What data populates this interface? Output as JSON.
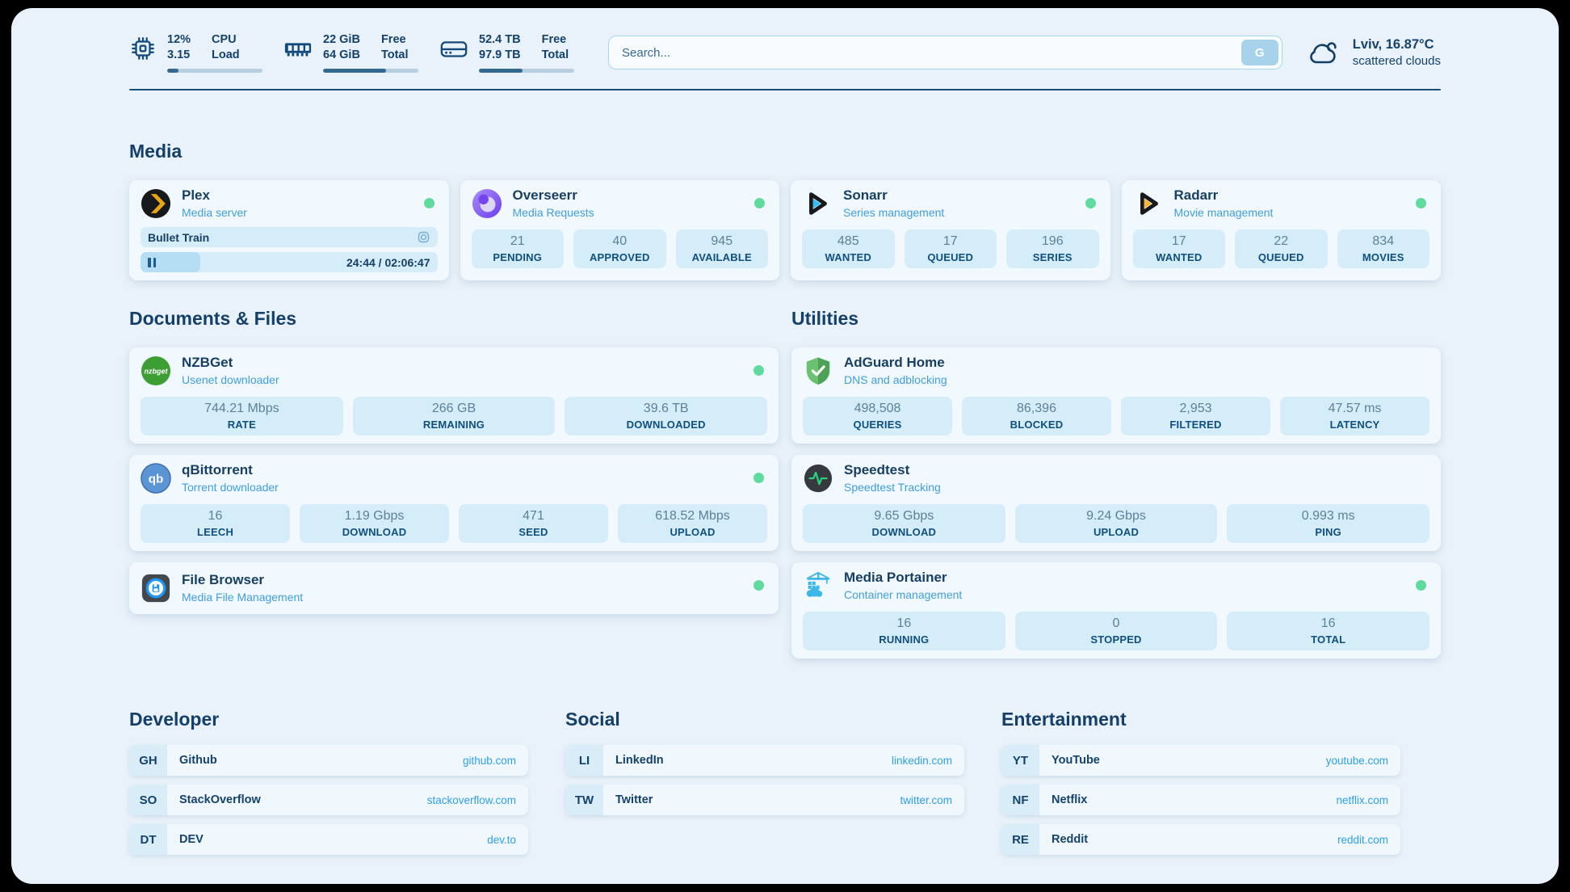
{
  "topbar": {
    "cpu": {
      "line1_value": "12%",
      "line2_value": "3.15",
      "line1_label": "CPU",
      "line2_label": "Load",
      "progress_pct": 12
    },
    "memory": {
      "line1_value": "22 GiB",
      "line2_value": "64 GiB",
      "line1_label": "Free",
      "line2_label": "Total",
      "progress_pct": 66
    },
    "disk": {
      "line1_value": "52.4 TB",
      "line2_value": "97.9 TB",
      "line1_label": "Free",
      "line2_label": "Total",
      "progress_pct": 46
    },
    "search": {
      "placeholder": "Search...",
      "button_label": "G"
    },
    "weather": {
      "location": "Lviv, 16.87°C",
      "condition": "scattered clouds"
    }
  },
  "sections": {
    "media": "Media",
    "documents": "Documents & Files",
    "utilities": "Utilities",
    "developer": "Developer",
    "social": "Social",
    "entertainment": "Entertainment"
  },
  "apps": {
    "plex": {
      "name": "Plex",
      "subtitle": "Media server",
      "media_title": "Bullet Train",
      "media_time": "24:44 / 02:06:47",
      "progress_pct": 20
    },
    "overseerr": {
      "name": "Overseerr",
      "subtitle": "Media Requests",
      "stats": [
        {
          "value": "21",
          "label": "PENDING"
        },
        {
          "value": "40",
          "label": "APPROVED"
        },
        {
          "value": "945",
          "label": "AVAILABLE"
        }
      ]
    },
    "sonarr": {
      "name": "Sonarr",
      "subtitle": "Series management",
      "stats": [
        {
          "value": "485",
          "label": "WANTED"
        },
        {
          "value": "17",
          "label": "QUEUED"
        },
        {
          "value": "196",
          "label": "SERIES"
        }
      ]
    },
    "radarr": {
      "name": "Radarr",
      "subtitle": "Movie management",
      "stats": [
        {
          "value": "17",
          "label": "WANTED"
        },
        {
          "value": "22",
          "label": "QUEUED"
        },
        {
          "value": "834",
          "label": "MOVIES"
        }
      ]
    },
    "nzbget": {
      "name": "NZBGet",
      "subtitle": "Usenet downloader",
      "icon_text": "nzbget",
      "stats": [
        {
          "value": "744.21 Mbps",
          "label": "RATE"
        },
        {
          "value": "266 GB",
          "label": "REMAINING"
        },
        {
          "value": "39.6 TB",
          "label": "DOWNLOADED"
        }
      ]
    },
    "qbittorrent": {
      "name": "qBittorrent",
      "subtitle": "Torrent downloader",
      "icon_text": "qb",
      "stats": [
        {
          "value": "16",
          "label": "LEECH"
        },
        {
          "value": "1.19 Gbps",
          "label": "DOWNLOAD"
        },
        {
          "value": "471",
          "label": "SEED"
        },
        {
          "value": "618.52 Mbps",
          "label": "UPLOAD"
        }
      ]
    },
    "filebrowser": {
      "name": "File Browser",
      "subtitle": "Media File Management"
    },
    "adguard": {
      "name": "AdGuard Home",
      "subtitle": "DNS and adblocking",
      "stats": [
        {
          "value": "498,508",
          "label": "QUERIES"
        },
        {
          "value": "86,396",
          "label": "BLOCKED"
        },
        {
          "value": "2,953",
          "label": "FILTERED"
        },
        {
          "value": "47.57 ms",
          "label": "LATENCY"
        }
      ]
    },
    "speedtest": {
      "name": "Speedtest",
      "subtitle": "Speedtest Tracking",
      "stats": [
        {
          "value": "9.65 Gbps",
          "label": "DOWNLOAD"
        },
        {
          "value": "9.24 Gbps",
          "label": "UPLOAD"
        },
        {
          "value": "0.993 ms",
          "label": "PING"
        }
      ]
    },
    "portainer": {
      "name": "Media Portainer",
      "subtitle": "Container management",
      "stats": [
        {
          "value": "16",
          "label": "RUNNING"
        },
        {
          "value": "0",
          "label": "STOPPED"
        },
        {
          "value": "16",
          "label": "TOTAL"
        }
      ]
    }
  },
  "bookmarks": {
    "developer": [
      {
        "abbr": "GH",
        "name": "Github",
        "url": "github.com"
      },
      {
        "abbr": "SO",
        "name": "StackOverflow",
        "url": "stackoverflow.com"
      },
      {
        "abbr": "DT",
        "name": "DEV",
        "url": "dev.to"
      }
    ],
    "social": [
      {
        "abbr": "LI",
        "name": "LinkedIn",
        "url": "linkedin.com"
      },
      {
        "abbr": "TW",
        "name": "Twitter",
        "url": "twitter.com"
      }
    ],
    "entertainment": [
      {
        "abbr": "YT",
        "name": "YouTube",
        "url": "youtube.com"
      },
      {
        "abbr": "NF",
        "name": "Netflix",
        "url": "netflix.com"
      },
      {
        "abbr": "RE",
        "name": "Reddit",
        "url": "reddit.com"
      }
    ]
  },
  "colors": {
    "accent": "#2e9fe8",
    "navy": "#14426b",
    "status_online": "#5fdb9d"
  }
}
